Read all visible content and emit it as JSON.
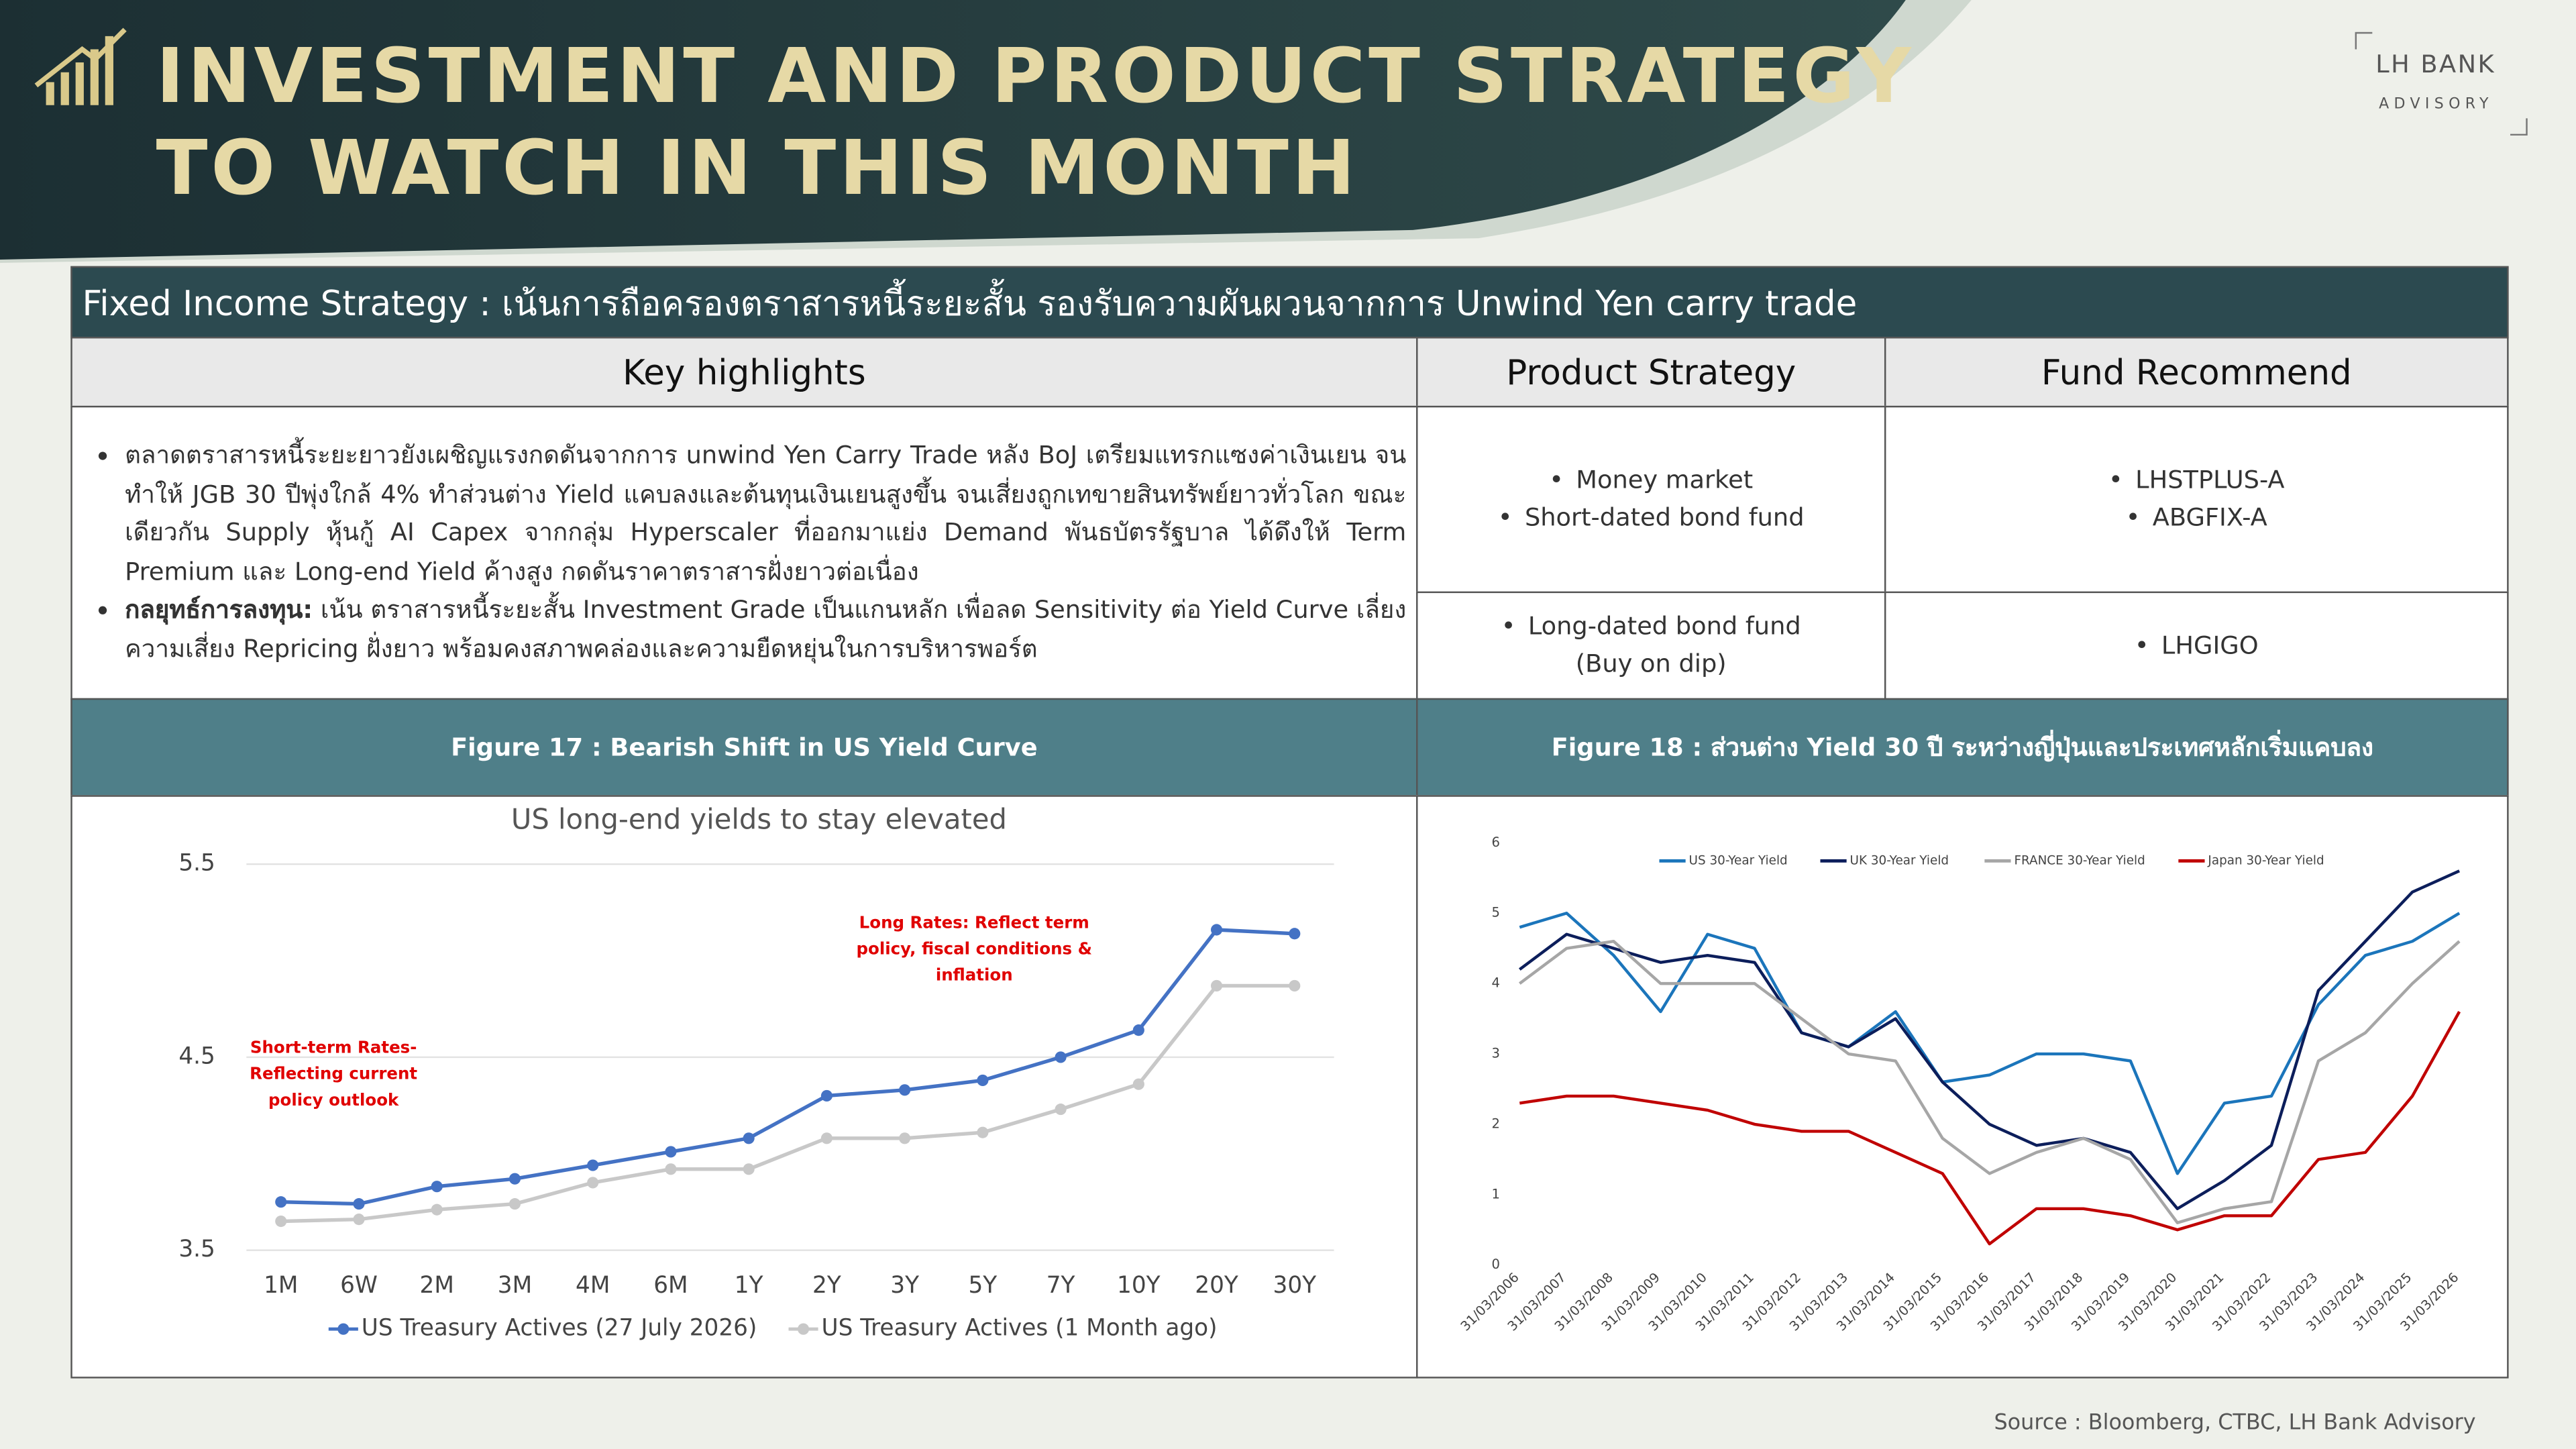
{
  "header": {
    "title_line1": "INVESTMENT AND PRODUCT STRATEGY",
    "title_line2": "TO WATCH IN THIS MONTH"
  },
  "logo": {
    "brand": "LH BANK",
    "sub": "ADVISORY"
  },
  "table": {
    "heading": "Fixed Income Strategy : เน้นการถือครองตราสารหนี้ระยะสั้น รองรับความผันผวนจากการ Unwind Yen carry trade",
    "columns": [
      "Key highlights",
      "Product Strategy",
      "Fund Recommend"
    ],
    "highlights": [
      {
        "text": "ตลาดตราสารหนี้ระยะยาวยังเผชิญแรงกดดันจากการ unwind Yen Carry Trade หลัง BoJ เตรียมแทรกแซงค่าเงินเยน จนทำให้ JGB 30 ปีพุ่งใกล้ 4% ทำส่วนต่าง Yield แคบลงและต้นทุนเงินเยนสูงขึ้น จนเสี่ยงถูกเทขายสินทรัพย์ยาวทั่วโลก ขณะเดียวกัน Supply หุ้นกู้ AI Capex จากกลุ่ม Hyperscaler ที่ออกมาแย่ง Demand พันธบัตรรัฐบาล ได้ดึงให้ Term Premium และ Long-end Yield ค้างสูง กดดันราคาตราสารฝั่งยาวต่อเนื่อง"
      },
      {
        "bold": "กลยุทธ์การลงทุน:",
        "text": " เน้น ตราสารหนี้ระยะสั้น Investment Grade เป็นแกนหลัก เพื่อลด Sensitivity ต่อ Yield Curve เลี่ยงความเสี่ยง Repricing ฝั่งยาว พร้อมคงสภาพคล่องและความยืดหยุ่นในการบริหารพอร์ต"
      }
    ],
    "product_strategy": [
      [
        "Money market",
        "Short-dated bond fund"
      ],
      [
        "Long-dated bond fund",
        "(Buy on dip)"
      ]
    ],
    "fund_recommend": [
      [
        "LHSTPLUS-A",
        "ABGFIX-A"
      ],
      [
        "LHGIGO"
      ]
    ]
  },
  "chart_data": [
    {
      "type": "line",
      "title": "Figure 17 : Bearish Shift in US Yield Curve",
      "subtitle": "US long-end yields to stay elevated",
      "categories": [
        "1M",
        "6W",
        "2M",
        "3M",
        "4M",
        "6M",
        "1Y",
        "2Y",
        "3Y",
        "5Y",
        "7Y",
        "10Y",
        "20Y",
        "30Y"
      ],
      "series": [
        {
          "name": "US Treasury Actives (27 July 2026)",
          "color": "#4472c4",
          "values": [
            3.75,
            3.74,
            3.83,
            3.87,
            3.94,
            4.01,
            4.08,
            4.3,
            4.33,
            4.38,
            4.5,
            4.64,
            5.16,
            5.14
          ]
        },
        {
          "name": "US Treasury Actives (1 Month ago)",
          "color": "#c8c8c8",
          "values": [
            3.65,
            3.66,
            3.71,
            3.74,
            3.85,
            3.92,
            3.92,
            4.08,
            4.08,
            4.11,
            4.23,
            4.36,
            4.87,
            4.87
          ]
        }
      ],
      "ylim": [
        3.5,
        5.5
      ],
      "yticks": [
        3.5,
        4.5,
        5.5
      ],
      "grid": true,
      "markers": true,
      "legend": "bottom",
      "annotations": [
        {
          "lines": [
            "Short-term Rates-",
            "Reflecting current",
            "policy outlook"
          ]
        },
        {
          "lines": [
            "Long Rates: Reflect term",
            "policy, fiscal conditions &",
            "inflation"
          ]
        }
      ],
      "annotation_color": "#e00000"
    },
    {
      "type": "line",
      "title": "Figure 18 : ส่วนต่าง Yield 30 ปี ระหว่างญี่ปุ่นและประเทศหลักเริ่มแคบลง",
      "categories": [
        "31/03/2006",
        "31/03/2007",
        "31/03/2008",
        "31/03/2009",
        "31/03/2010",
        "31/03/2011",
        "31/03/2012",
        "31/03/2013",
        "31/03/2014",
        "31/03/2015",
        "31/03/2016",
        "31/03/2017",
        "31/03/2018",
        "31/03/2019",
        "31/03/2020",
        "31/03/2021",
        "31/03/2022",
        "31/03/2023",
        "31/03/2024",
        "31/03/2025",
        "31/03/2026"
      ],
      "series": [
        {
          "name": "US 30-Year Yield",
          "color": "#1b75bb",
          "values": [
            4.8,
            5.0,
            4.4,
            3.6,
            4.7,
            4.5,
            3.3,
            3.1,
            3.6,
            2.6,
            2.7,
            3.0,
            3.0,
            2.9,
            1.3,
            2.3,
            2.4,
            3.7,
            4.4,
            4.6,
            5.0
          ]
        },
        {
          "name": "UK 30-Year Yield",
          "color": "#0c1e5b",
          "values": [
            4.2,
            4.7,
            4.5,
            4.3,
            4.4,
            4.3,
            3.3,
            3.1,
            3.5,
            2.6,
            2.0,
            1.7,
            1.8,
            1.6,
            0.8,
            1.2,
            1.7,
            3.9,
            4.6,
            5.3,
            5.6
          ]
        },
        {
          "name": "FRANCE 30-Year Yield",
          "color": "#a6a6a6",
          "values": [
            4.0,
            4.5,
            4.6,
            4.0,
            4.0,
            4.0,
            3.5,
            3.0,
            2.9,
            1.8,
            1.3,
            1.6,
            1.8,
            1.5,
            0.6,
            0.8,
            0.9,
            2.9,
            3.3,
            4.0,
            4.6
          ]
        },
        {
          "name": "Japan 30-Year Yield",
          "color": "#c00000",
          "values": [
            2.3,
            2.4,
            2.4,
            2.3,
            2.2,
            2.0,
            1.9,
            1.9,
            1.6,
            1.3,
            0.3,
            0.8,
            0.8,
            0.7,
            0.5,
            0.7,
            0.7,
            1.5,
            1.6,
            2.4,
            3.6
          ]
        }
      ],
      "ylim": [
        0,
        6
      ],
      "yticks": [
        0,
        1,
        2,
        3,
        4,
        5,
        6
      ],
      "grid": false,
      "markers": false,
      "legend": "top"
    }
  ],
  "source": "Source : Bloomberg,  CTBC, LH Bank Advisory"
}
